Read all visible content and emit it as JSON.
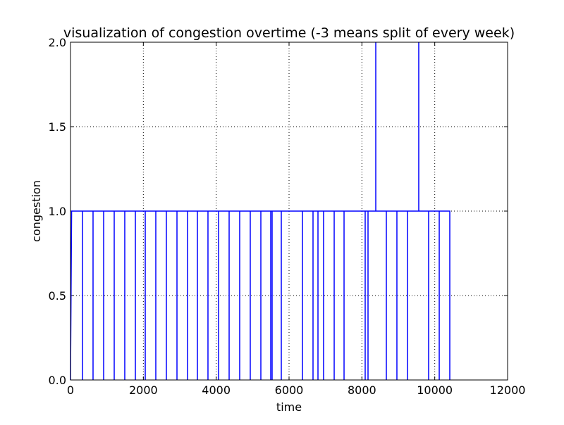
{
  "chart_data": {
    "type": "line",
    "title": "visualization of congestion overtime (-3 means split of every week)",
    "xlabel": "time",
    "ylabel": "congestion",
    "color": "#0000ff",
    "grid": true,
    "xlim": [
      0,
      12000
    ],
    "xticks": [
      0,
      2000,
      4000,
      6000,
      8000,
      10000,
      12000
    ],
    "ylim": [
      0,
      2
    ],
    "yticks": [
      {
        "value": 0,
        "label": "0.0"
      },
      {
        "value": 0.5,
        "label": "0.5"
      },
      {
        "value": 1,
        "label": "1.0"
      },
      {
        "value": 1.5,
        "label": "1.5"
      },
      {
        "value": 2,
        "label": "2.0"
      }
    ],
    "x": [
      0,
      30,
      329,
      329,
      329,
      619,
      619,
      619,
      910,
      910,
      910,
      1200,
      1200,
      1200,
      1490,
      1490,
      1490,
      1781,
      1781,
      1781,
      2052,
      2052,
      2052,
      2342,
      2342,
      2342,
      2632,
      2632,
      2632,
      2923,
      2923,
      2923,
      3213,
      3213,
      3213,
      3484,
      3484,
      3484,
      3774,
      3774,
      3774,
      4065,
      4065,
      4065,
      4355,
      4355,
      4355,
      4645,
      4645,
      4645,
      4935,
      4935,
      4935,
      5226,
      5226,
      5226,
      5497,
      5497,
      5497,
      5535,
      5535,
      5535,
      5787,
      5787,
      5787,
      6368,
      6368,
      6368,
      6658,
      6658,
      6658,
      6794,
      6794,
      6794,
      6948,
      6948,
      6948,
      7239,
      7239,
      7239,
      7510,
      7510,
      7510,
      8090,
      8090,
      8090,
      8168,
      8168,
      8168,
      8381,
      8381,
      8381,
      8671,
      8671,
      8671,
      8961,
      8961,
      8961,
      9252,
      9252,
      9252,
      9561,
      9561,
      9561,
      9832,
      9832,
      9832,
      10123,
      10123,
      10123,
      10413,
      10413
    ],
    "values": [
      0,
      1,
      1,
      0,
      1,
      1,
      0,
      1,
      1,
      0,
      1,
      1,
      0,
      1,
      1,
      0,
      1,
      1,
      0,
      1,
      1,
      0,
      1,
      1,
      0,
      1,
      1,
      0,
      1,
      1,
      0,
      1,
      1,
      0,
      1,
      1,
      0,
      1,
      1,
      0,
      1,
      1,
      0,
      1,
      1,
      0,
      1,
      1,
      0,
      1,
      1,
      0,
      1,
      1,
      0,
      1,
      1,
      0,
      1,
      1,
      0,
      1,
      1,
      0,
      1,
      1,
      0,
      1,
      1,
      0,
      1,
      1,
      0,
      1,
      1,
      0,
      1,
      1,
      0,
      1,
      1,
      0,
      1,
      1,
      0,
      1,
      1,
      0,
      1,
      1,
      2,
      1,
      1,
      0,
      1,
      1,
      0,
      1,
      1,
      0,
      1,
      1,
      2,
      1,
      1,
      0,
      1,
      1,
      0,
      1,
      1,
      0
    ]
  }
}
